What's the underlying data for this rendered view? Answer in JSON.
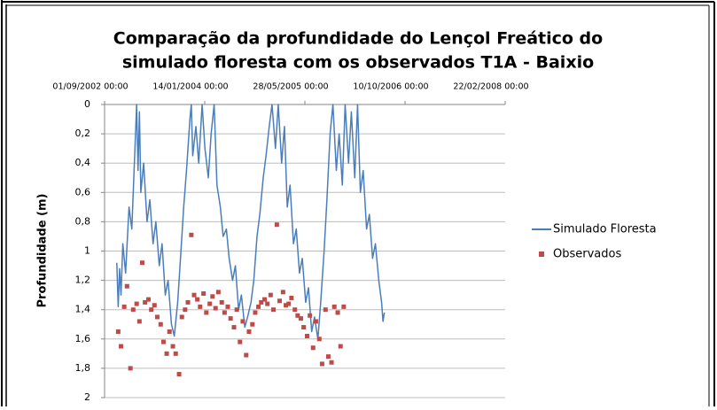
{
  "chart_data": {
    "type": "line",
    "title": [
      "Comparação da profundidade do Lençol Freático do",
      "simulado floresta com os observados T1A - Baixio"
    ],
    "ylabel": "Profundidade (m)",
    "ylim": [
      0,
      2
    ],
    "y_inverted": true,
    "yticks": [
      0,
      {
        "value": 0.2,
        "label": "0,2"
      },
      {
        "value": 0.4,
        "label": "0,4"
      },
      {
        "value": 0.6,
        "label": "0,6"
      },
      {
        "value": 0.8,
        "label": "0,8"
      },
      1,
      {
        "value": 1.2,
        "label": "1,2"
      },
      {
        "value": 1.4,
        "label": "1,4"
      },
      {
        "value": 1.6,
        "label": "1,6"
      },
      {
        "value": 1.8,
        "label": "1,8"
      },
      2
    ],
    "xlim": [
      "2002-09-01",
      "2008-02-22"
    ],
    "xticks": [
      {
        "value": "2002-09-01",
        "label": "01/09/2002 00:00"
      },
      {
        "value": "2004-01-14",
        "label": "14/01/2004 00:00"
      },
      {
        "value": "2005-05-28",
        "label": "28/05/2005 00:00"
      },
      {
        "value": "2006-10-10",
        "label": "10/10/2006 00:00"
      },
      {
        "value": "2008-02-22",
        "label": "22/02/2008 00:00"
      }
    ],
    "x_axis_position": "top",
    "grid": true,
    "legend": "right",
    "series": [
      {
        "name": "Simulado Floresta",
        "type": "line",
        "color": "#4a7ebb",
        "x": [
          "2002-11-01",
          "2002-11-08",
          "2002-11-15",
          "2002-11-22",
          "2002-12-01",
          "2002-12-15",
          "2003-01-01",
          "2003-01-15",
          "2003-02-01",
          "2003-02-08",
          "2003-02-15",
          "2003-02-22",
          "2003-03-01",
          "2003-03-15",
          "2003-04-01",
          "2003-04-15",
          "2003-05-01",
          "2003-05-15",
          "2003-06-01",
          "2003-06-15",
          "2003-07-01",
          "2003-07-15",
          "2003-08-01",
          "2003-08-15",
          "2003-09-01",
          "2003-09-15",
          "2003-10-01",
          "2003-10-15",
          "2003-11-01",
          "2003-11-08",
          "2003-11-15",
          "2003-12-01",
          "2003-12-15",
          "2004-01-01",
          "2004-01-15",
          "2004-02-01",
          "2004-02-15",
          "2004-03-01",
          "2004-03-15",
          "2004-04-01",
          "2004-04-15",
          "2004-05-01",
          "2004-05-15",
          "2004-06-01",
          "2004-06-15",
          "2004-07-01",
          "2004-07-15",
          "2004-08-01",
          "2004-08-15",
          "2004-09-01",
          "2004-09-15",
          "2004-10-01",
          "2004-10-15",
          "2004-11-01",
          "2004-11-15",
          "2004-12-01",
          "2004-12-15",
          "2005-01-01",
          "2005-01-15",
          "2005-02-01",
          "2005-02-15",
          "2005-03-01",
          "2005-03-15",
          "2005-04-01",
          "2005-04-15",
          "2005-05-01",
          "2005-05-15",
          "2005-06-01",
          "2005-06-15",
          "2005-07-01",
          "2005-07-15",
          "2005-08-01",
          "2005-08-15",
          "2005-09-01",
          "2005-09-15",
          "2005-10-01",
          "2005-10-15",
          "2005-11-01",
          "2005-11-15",
          "2005-12-01",
          "2005-12-15",
          "2006-01-01",
          "2006-01-15",
          "2006-02-01",
          "2006-02-15",
          "2006-03-01",
          "2006-03-15",
          "2006-04-01",
          "2006-04-15",
          "2006-05-01",
          "2006-05-15",
          "2006-06-01",
          "2006-06-15",
          "2006-06-22",
          "2006-06-29"
        ],
        "values": [
          1.08,
          1.38,
          1.12,
          1.3,
          0.95,
          1.15,
          0.7,
          0.85,
          0.25,
          0,
          0.45,
          0.05,
          0.6,
          0.4,
          0.8,
          0.65,
          0.95,
          0.8,
          1.1,
          0.95,
          1.3,
          1.2,
          1.5,
          1.58,
          1.35,
          1.05,
          0.7,
          0.45,
          0.1,
          0,
          0.35,
          0.15,
          0.4,
          0,
          0.3,
          0.5,
          0.2,
          0,
          0.55,
          0.7,
          0.9,
          0.85,
          1.05,
          1.2,
          1.1,
          1.4,
          1.3,
          1.52,
          1.45,
          1.35,
          1.2,
          0.9,
          0.75,
          0.5,
          0.35,
          0.15,
          0,
          0.3,
          0,
          0.4,
          0.15,
          0.7,
          0.55,
          0.95,
          0.85,
          1.15,
          1.05,
          1.35,
          1.25,
          1.55,
          1.45,
          1.6,
          1.35,
          1,
          0.65,
          0.2,
          0,
          0.45,
          0.2,
          0.55,
          0,
          0.4,
          0.05,
          0.5,
          0,
          0.6,
          0.45,
          0.85,
          0.75,
          1.05,
          0.95,
          1.2,
          1.35,
          1.48,
          1.42
        ]
      },
      {
        "name": "Observados",
        "type": "scatter",
        "color": "#be4b48",
        "x": [
          "2002-11-08",
          "2002-11-22",
          "2002-12-08",
          "2002-12-22",
          "2003-01-08",
          "2003-01-22",
          "2003-02-08",
          "2003-02-22",
          "2003-03-08",
          "2003-03-22",
          "2003-04-08",
          "2003-04-22",
          "2003-05-08",
          "2003-05-22",
          "2003-06-08",
          "2003-06-22",
          "2003-07-08",
          "2003-07-22",
          "2003-08-08",
          "2003-08-22",
          "2003-09-08",
          "2003-09-22",
          "2003-10-08",
          "2003-10-22",
          "2003-11-08",
          "2003-11-22",
          "2003-12-08",
          "2003-12-22",
          "2004-01-08",
          "2004-01-22",
          "2004-02-08",
          "2004-02-22",
          "2004-03-08",
          "2004-03-22",
          "2004-04-08",
          "2004-04-22",
          "2004-05-08",
          "2004-05-22",
          "2004-06-08",
          "2004-06-22",
          "2004-07-08",
          "2004-07-22",
          "2004-08-08",
          "2004-08-22",
          "2004-09-08",
          "2004-09-22",
          "2004-10-08",
          "2004-10-22",
          "2004-11-08",
          "2004-11-22",
          "2004-12-08",
          "2004-12-22",
          "2005-01-08",
          "2005-01-22",
          "2005-02-08",
          "2005-02-22",
          "2005-03-08",
          "2005-03-22",
          "2005-04-08",
          "2005-04-22",
          "2005-05-08",
          "2005-05-22",
          "2005-06-08",
          "2005-06-22",
          "2005-07-08",
          "2005-07-22",
          "2005-08-08",
          "2005-08-22",
          "2005-09-08",
          "2005-09-22",
          "2005-10-08",
          "2005-10-22",
          "2005-11-08",
          "2005-11-22",
          "2005-12-08"
        ],
        "values": [
          1.55,
          1.65,
          1.38,
          1.24,
          1.8,
          1.4,
          1.36,
          1.48,
          1.08,
          1.35,
          1.33,
          1.4,
          1.37,
          1.45,
          1.5,
          1.62,
          1.7,
          1.55,
          1.65,
          1.7,
          1.84,
          1.45,
          1.4,
          1.35,
          0.89,
          1.3,
          1.33,
          1.38,
          1.29,
          1.42,
          1.36,
          1.31,
          1.39,
          1.28,
          1.35,
          1.42,
          1.38,
          1.46,
          1.52,
          1.4,
          1.62,
          1.48,
          1.71,
          1.55,
          1.5,
          1.42,
          1.38,
          1.35,
          1.33,
          1.36,
          1.3,
          1.4,
          0.82,
          1.34,
          1.28,
          1.37,
          1.36,
          1.32,
          1.4,
          1.44,
          1.46,
          1.52,
          1.58,
          1.44,
          1.66,
          1.48,
          1.6,
          1.77,
          1.4,
          1.72,
          1.76,
          1.38,
          1.42,
          1.65,
          1.38
        ]
      }
    ]
  }
}
